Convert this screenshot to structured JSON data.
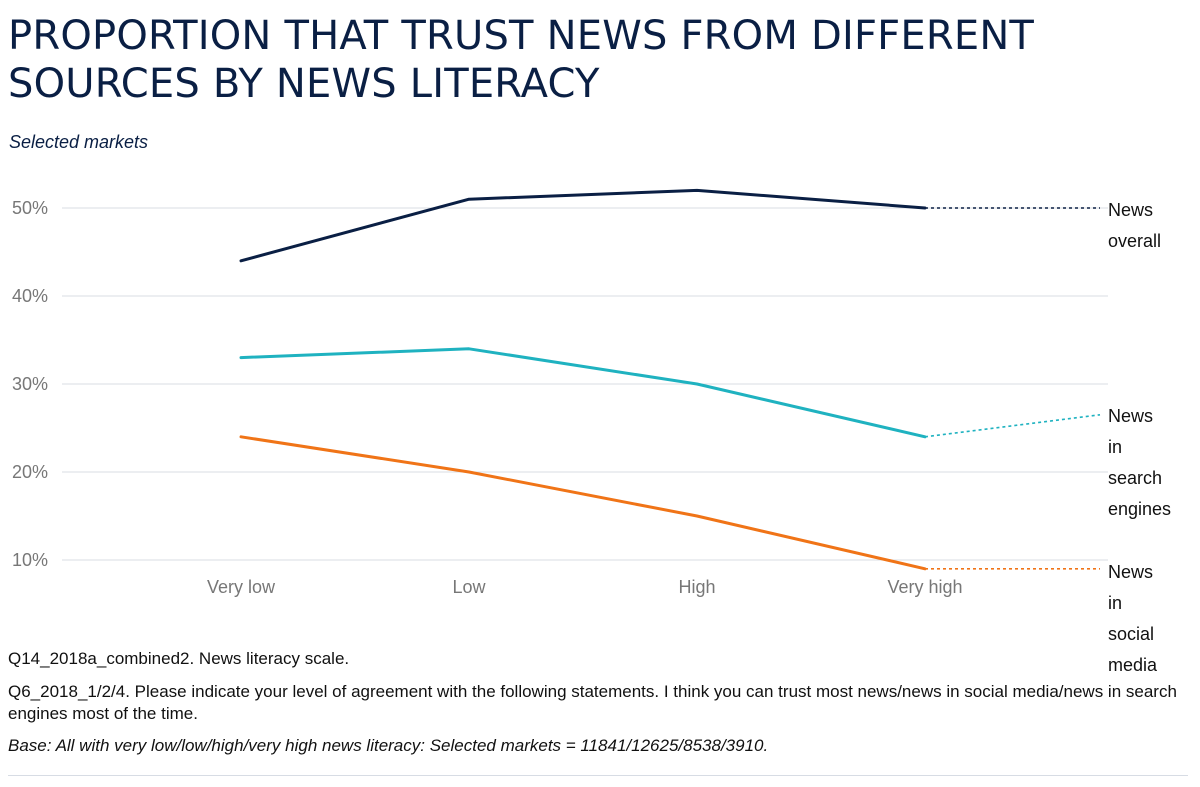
{
  "header": {
    "title": "PROPORTION THAT TRUST NEWS FROM DIFFERENT SOURCES BY NEWS LITERACY",
    "subtitle": "Selected markets"
  },
  "chart_data": {
    "type": "line",
    "title": "PROPORTION THAT TRUST NEWS FROM DIFFERENT SOURCES BY NEWS LITERACY",
    "subtitle": "Selected markets",
    "xlabel": "",
    "ylabel": "",
    "categories": [
      "Very low",
      "Low",
      "High",
      "Very high"
    ],
    "y_ticks": [
      10,
      20,
      30,
      40,
      50
    ],
    "y_tick_labels": [
      "10%",
      "20%",
      "30%",
      "40%",
      "50%"
    ],
    "ylim": [
      10,
      50
    ],
    "grid": true,
    "series": [
      {
        "name": "News overall",
        "label_words": [
          "News",
          "overall"
        ],
        "color": "#0a1f44",
        "values": [
          44,
          51,
          52,
          50
        ],
        "extension_end": 50
      },
      {
        "name": "News in search engines",
        "label_words": [
          "News",
          "in",
          "search",
          "engines"
        ],
        "color": "#1fb2c0",
        "values": [
          33,
          34,
          30,
          24
        ],
        "extension_end": 26.5
      },
      {
        "name": "News in social media",
        "label_words": [
          "News",
          "in",
          "social",
          "media"
        ],
        "color": "#f07417",
        "values": [
          24,
          20,
          15,
          9
        ],
        "extension_end": 9
      }
    ]
  },
  "notes": {
    "line1": "Q14_2018a_combined2. News literacy scale.",
    "line2": "Q6_2018_1/2/4. Please indicate your level of agreement with the following statements. I think you can trust most news/news in social media/news in search engines most of the time.",
    "base": "Base: All with very low/low/high/very high news literacy: Selected markets = 11841/12625/8538/3910."
  }
}
